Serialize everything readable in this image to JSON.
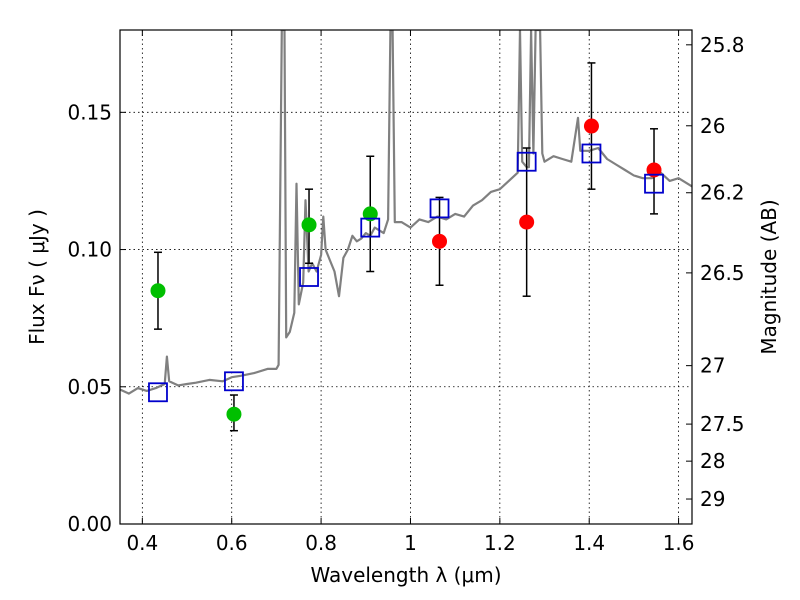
{
  "chart_data": {
    "type": "scatter",
    "xlabel": "Wavelength  λ (μm)",
    "ylabel": "Flux  Fν  ( μJy )",
    "y2label": "Magnitude (AB)",
    "xlim": [
      0.35,
      1.63
    ],
    "ylim": [
      0.0,
      0.18
    ],
    "grid": true,
    "x_ticks": [
      {
        "value": 0.4,
        "label": "0.4"
      },
      {
        "value": 0.6,
        "label": "0.6"
      },
      {
        "value": 0.8,
        "label": "0.8"
      },
      {
        "value": 1.0,
        "label": "1"
      },
      {
        "value": 1.2,
        "label": "1.2"
      },
      {
        "value": 1.4,
        "label": "1.4"
      },
      {
        "value": 1.6,
        "label": "1.6"
      }
    ],
    "y_ticks": [
      {
        "value": 0.0,
        "label": "0.00"
      },
      {
        "value": 0.05,
        "label": "0.05"
      },
      {
        "value": 0.1,
        "label": "0.10"
      },
      {
        "value": 0.15,
        "label": "0.15"
      }
    ],
    "magnitude_ticks": [
      {
        "flux": 0.1746,
        "label": "25.8"
      },
      {
        "flux": 0.1451,
        "label": "26"
      },
      {
        "flux": 0.1207,
        "label": "26.2"
      },
      {
        "flux": 0.0915,
        "label": "26.5"
      },
      {
        "flux": 0.0577,
        "label": "27"
      },
      {
        "flux": 0.0364,
        "label": "27.5"
      },
      {
        "flux": 0.0229,
        "label": "28"
      },
      {
        "flux": 0.0091,
        "label": "29"
      }
    ],
    "series": [
      {
        "kind": "line",
        "color": "#808080",
        "points": [
          [
            0.35,
            0.049
          ],
          [
            0.37,
            0.0475
          ],
          [
            0.39,
            0.0495
          ],
          [
            0.41,
            0.0485
          ],
          [
            0.43,
            0.0495
          ],
          [
            0.45,
            0.051
          ],
          [
            0.455,
            0.061
          ],
          [
            0.46,
            0.052
          ],
          [
            0.48,
            0.0505
          ],
          [
            0.5,
            0.051
          ],
          [
            0.52,
            0.0515
          ],
          [
            0.55,
            0.0525
          ],
          [
            0.58,
            0.052
          ],
          [
            0.6,
            0.0535
          ],
          [
            0.62,
            0.054
          ],
          [
            0.65,
            0.055
          ],
          [
            0.68,
            0.0565
          ],
          [
            0.7,
            0.0565
          ],
          [
            0.705,
            0.058
          ],
          [
            0.712,
            0.18
          ],
          [
            0.718,
            0.18
          ],
          [
            0.722,
            0.068
          ],
          [
            0.73,
            0.07
          ],
          [
            0.74,
            0.077
          ],
          [
            0.745,
            0.124
          ],
          [
            0.75,
            0.08
          ],
          [
            0.76,
            0.088
          ],
          [
            0.765,
            0.118
          ],
          [
            0.772,
            0.092
          ],
          [
            0.78,
            0.095
          ],
          [
            0.79,
            0.092
          ],
          [
            0.8,
            0.098
          ],
          [
            0.805,
            0.112
          ],
          [
            0.81,
            0.1
          ],
          [
            0.82,
            0.096
          ],
          [
            0.83,
            0.092
          ],
          [
            0.84,
            0.083
          ],
          [
            0.85,
            0.097
          ],
          [
            0.86,
            0.1
          ],
          [
            0.87,
            0.105
          ],
          [
            0.88,
            0.103
          ],
          [
            0.89,
            0.104
          ],
          [
            0.9,
            0.106
          ],
          [
            0.91,
            0.105
          ],
          [
            0.92,
            0.108
          ],
          [
            0.93,
            0.107
          ],
          [
            0.94,
            0.106
          ],
          [
            0.95,
            0.111
          ],
          [
            0.955,
            0.18
          ],
          [
            0.96,
            0.18
          ],
          [
            0.965,
            0.11
          ],
          [
            0.98,
            0.11
          ],
          [
            1.0,
            0.108
          ],
          [
            1.02,
            0.111
          ],
          [
            1.04,
            0.11
          ],
          [
            1.06,
            0.112
          ],
          [
            1.08,
            0.111
          ],
          [
            1.1,
            0.113
          ],
          [
            1.12,
            0.112
          ],
          [
            1.14,
            0.116
          ],
          [
            1.16,
            0.118
          ],
          [
            1.18,
            0.121
          ],
          [
            1.2,
            0.122
          ],
          [
            1.22,
            0.125
          ],
          [
            1.24,
            0.128
          ],
          [
            1.245,
            0.18
          ],
          [
            1.25,
            0.132
          ],
          [
            1.26,
            0.13
          ],
          [
            1.265,
            0.13
          ],
          [
            1.27,
            0.18
          ],
          [
            1.275,
            0.135
          ],
          [
            1.28,
            0.18
          ],
          [
            1.29,
            0.18
          ],
          [
            1.295,
            0.135
          ],
          [
            1.3,
            0.132
          ],
          [
            1.32,
            0.134
          ],
          [
            1.34,
            0.133
          ],
          [
            1.36,
            0.132
          ],
          [
            1.375,
            0.148
          ],
          [
            1.38,
            0.136
          ],
          [
            1.4,
            0.136
          ],
          [
            1.42,
            0.137
          ],
          [
            1.44,
            0.133
          ],
          [
            1.46,
            0.131
          ],
          [
            1.48,
            0.129
          ],
          [
            1.5,
            0.127
          ],
          [
            1.52,
            0.126
          ],
          [
            1.54,
            0.126
          ],
          [
            1.56,
            0.128
          ],
          [
            1.58,
            0.125
          ],
          [
            1.6,
            0.126
          ],
          [
            1.63,
            0.123
          ]
        ]
      },
      {
        "kind": "points",
        "marker": "circle",
        "color": "#00bf00",
        "points": [
          {
            "x": 0.435,
            "y": 0.085,
            "err_low": 0.071,
            "err_high": 0.099
          },
          {
            "x": 0.605,
            "y": 0.04,
            "err_low": 0.034,
            "err_high": 0.047
          },
          {
            "x": 0.773,
            "y": 0.109,
            "err_low": 0.095,
            "err_high": 0.122
          },
          {
            "x": 0.91,
            "y": 0.113,
            "err_low": 0.092,
            "err_high": 0.134
          }
        ]
      },
      {
        "kind": "points",
        "marker": "circle",
        "color": "#ff0000",
        "points": [
          {
            "x": 1.065,
            "y": 0.103,
            "err_low": 0.087,
            "err_high": 0.119
          },
          {
            "x": 1.26,
            "y": 0.11,
            "err_low": 0.083,
            "err_high": 0.137
          },
          {
            "x": 1.405,
            "y": 0.145,
            "err_low": 0.122,
            "err_high": 0.168
          },
          {
            "x": 1.545,
            "y": 0.129,
            "err_low": 0.113,
            "err_high": 0.144
          }
        ]
      },
      {
        "kind": "points",
        "marker": "open-square",
        "color": "#0000cc",
        "points": [
          {
            "x": 0.435,
            "y": 0.048
          },
          {
            "x": 0.605,
            "y": 0.052
          },
          {
            "x": 0.773,
            "y": 0.09
          },
          {
            "x": 0.91,
            "y": 0.108
          },
          {
            "x": 1.065,
            "y": 0.115
          },
          {
            "x": 1.26,
            "y": 0.132
          },
          {
            "x": 1.405,
            "y": 0.135
          },
          {
            "x": 1.545,
            "y": 0.124
          }
        ]
      }
    ]
  }
}
